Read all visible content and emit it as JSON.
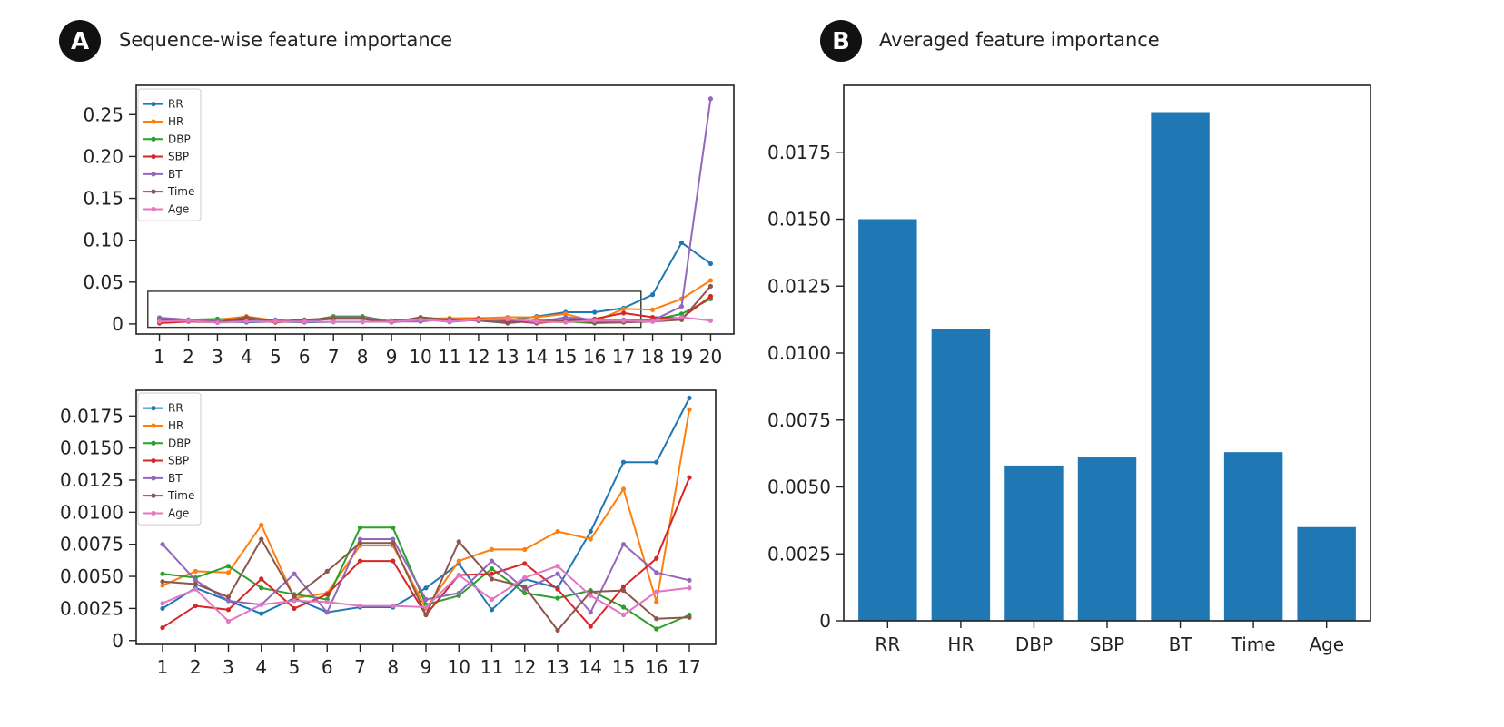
{
  "panels": {
    "a": {
      "badge": "A",
      "title": "Sequence-wise feature importance"
    },
    "b": {
      "badge": "B",
      "title": "Averaged feature importance"
    }
  },
  "colors": {
    "RR": "#1f77b4",
    "HR": "#ff7f0e",
    "DBP": "#2ca02c",
    "SBP": "#d62728",
    "BT": "#9467bd",
    "Time": "#8c564b",
    "Age": "#e377c2",
    "bar": "#1f77b4"
  },
  "chart_data": [
    {
      "id": "top",
      "type": "line",
      "x": [
        1,
        2,
        3,
        4,
        5,
        6,
        7,
        8,
        9,
        10,
        11,
        12,
        13,
        14,
        15,
        16,
        17,
        18,
        19,
        20
      ],
      "ylim": [
        -0.012,
        0.285
      ],
      "yticks": [
        0,
        0.05,
        0.1,
        0.15,
        0.2,
        0.25
      ],
      "ytick_labels": [
        "0",
        "0.05",
        "0.10",
        "0.15",
        "0.20",
        "0.25"
      ],
      "zoom_box": {
        "x_from": 0.6,
        "x_to": 17.6,
        "y_from": -0.004,
        "y_to": 0.039
      },
      "series": [
        {
          "name": "RR",
          "values": [
            0.0025,
            0.004,
            0.003,
            0.002,
            0.003,
            0.002,
            0.0025,
            0.0025,
            0.004,
            0.006,
            0.0025,
            0.005,
            0.004,
            0.009,
            0.014,
            0.014,
            0.019,
            0.035,
            0.097,
            0.072
          ]
        },
        {
          "name": "HR",
          "values": [
            0.004,
            0.005,
            0.005,
            0.009,
            0.004,
            0.003,
            0.007,
            0.007,
            0.003,
            0.006,
            0.007,
            0.007,
            0.008,
            0.008,
            0.012,
            0.003,
            0.018,
            0.017,
            0.03,
            0.052
          ]
        },
        {
          "name": "DBP",
          "values": [
            0.005,
            0.005,
            0.006,
            0.004,
            0.004,
            0.003,
            0.009,
            0.009,
            0.003,
            0.004,
            0.005,
            0.004,
            0.003,
            0.004,
            0.003,
            0.001,
            0.002,
            0.005,
            0.012,
            0.03
          ]
        },
        {
          "name": "SBP",
          "values": [
            0.001,
            0.003,
            0.002,
            0.005,
            0.002,
            0.004,
            0.006,
            0.006,
            0.002,
            0.005,
            0.005,
            0.006,
            0.004,
            0.001,
            0.004,
            0.006,
            0.013,
            0.008,
            0.007,
            0.033
          ]
        },
        {
          "name": "BT",
          "values": [
            0.0075,
            0.005,
            0.003,
            0.003,
            0.005,
            0.002,
            0.008,
            0.008,
            0.003,
            0.003,
            0.006,
            0.004,
            0.005,
            0.002,
            0.008,
            0.005,
            0.005,
            0.004,
            0.021,
            0.269
          ]
        },
        {
          "name": "Time",
          "values": [
            0.0045,
            0.004,
            0.002,
            0.008,
            0.003,
            0.005,
            0.007,
            0.007,
            0.002,
            0.008,
            0.005,
            0.004,
            0.001,
            0.004,
            0.004,
            0.002,
            0.002,
            0.003,
            0.005,
            0.045
          ]
        },
        {
          "name": "Age",
          "values": [
            0.003,
            0.004,
            0.0015,
            0.003,
            0.003,
            0.003,
            0.0025,
            0.0025,
            0.0025,
            0.005,
            0.003,
            0.005,
            0.006,
            0.003,
            0.002,
            0.004,
            0.004,
            0.003,
            0.008,
            0.004
          ]
        }
      ]
    },
    {
      "id": "bottom",
      "type": "line",
      "x": [
        1,
        2,
        3,
        4,
        5,
        6,
        7,
        8,
        9,
        10,
        11,
        12,
        13,
        14,
        15,
        16,
        17
      ],
      "ylim": [
        -0.0003,
        0.0195
      ],
      "yticks": [
        0,
        0.0025,
        0.005,
        0.0075,
        0.01,
        0.0125,
        0.015,
        0.0175
      ],
      "ytick_labels": [
        "0",
        "0.0025",
        "0.0050",
        "0.0075",
        "0.0100",
        "0.0125",
        "0.0150",
        "0.0175"
      ],
      "series": [
        {
          "name": "RR",
          "values": [
            0.0025,
            0.0041,
            0.0031,
            0.0021,
            0.0033,
            0.0022,
            0.0026,
            0.0026,
            0.0041,
            0.006,
            0.0024,
            0.0048,
            0.0041,
            0.0085,
            0.0139,
            0.0139,
            0.0189
          ]
        },
        {
          "name": "HR",
          "values": [
            0.0043,
            0.0054,
            0.0053,
            0.009,
            0.0033,
            0.0037,
            0.0074,
            0.0074,
            0.0025,
            0.0062,
            0.0071,
            0.0071,
            0.0085,
            0.0079,
            0.0118,
            0.003,
            0.018
          ]
        },
        {
          "name": "DBP",
          "values": [
            0.0052,
            0.0049,
            0.0058,
            0.0041,
            0.0036,
            0.0032,
            0.0088,
            0.0088,
            0.0028,
            0.0035,
            0.0056,
            0.0037,
            0.0033,
            0.0039,
            0.0026,
            0.0009,
            0.002
          ]
        },
        {
          "name": "SBP",
          "values": [
            0.001,
            0.0027,
            0.0024,
            0.0048,
            0.0025,
            0.0036,
            0.0062,
            0.0062,
            0.002,
            0.0051,
            0.0052,
            0.006,
            0.004,
            0.0011,
            0.0042,
            0.0064,
            0.0127
          ]
        },
        {
          "name": "BT",
          "values": [
            0.0075,
            0.0047,
            0.0031,
            0.0028,
            0.0052,
            0.0022,
            0.0079,
            0.0079,
            0.0032,
            0.0037,
            0.0062,
            0.004,
            0.0052,
            0.0022,
            0.0075,
            0.0053,
            0.0047
          ]
        },
        {
          "name": "Time",
          "values": [
            0.0046,
            0.0044,
            0.0034,
            0.0079,
            0.0034,
            0.0054,
            0.0076,
            0.0076,
            0.002,
            0.0077,
            0.0048,
            0.0042,
            0.0008,
            0.0038,
            0.0039,
            0.0017,
            0.0018
          ]
        },
        {
          "name": "Age",
          "values": [
            0.0029,
            0.004,
            0.0015,
            0.0028,
            0.0031,
            0.003,
            0.0027,
            0.0027,
            0.0026,
            0.0051,
            0.0032,
            0.0049,
            0.0058,
            0.0035,
            0.002,
            0.0038,
            0.0041
          ]
        }
      ]
    },
    {
      "id": "bars",
      "type": "bar",
      "categories": [
        "RR",
        "HR",
        "DBP",
        "SBP",
        "BT",
        "Time",
        "Age"
      ],
      "values": [
        0.015,
        0.0109,
        0.0058,
        0.0061,
        0.019,
        0.0063,
        0.0035
      ],
      "ylim": [
        0,
        0.02
      ],
      "yticks": [
        0,
        0.0025,
        0.005,
        0.0075,
        0.01,
        0.0125,
        0.015,
        0.0175
      ],
      "ytick_labels": [
        "0",
        "0.0025",
        "0.0050",
        "0.0075",
        "0.0100",
        "0.0125",
        "0.0150",
        "0.0175"
      ]
    }
  ]
}
